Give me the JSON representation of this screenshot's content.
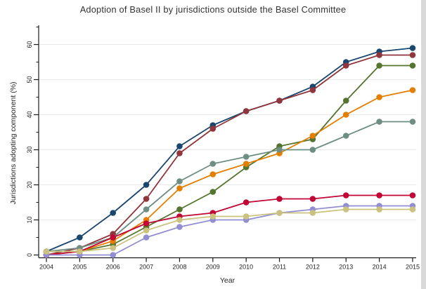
{
  "chart_data": {
    "type": "line",
    "title": "Adoption of Basel II by jurisdictions outside the Basel Committee",
    "xlabel": "Year",
    "ylabel": "Jurisdictions adopting component (%)",
    "x": [
      2004,
      2005,
      2006,
      2007,
      2008,
      2009,
      2010,
      2011,
      2012,
      2013,
      2014,
      2015
    ],
    "ylim": [
      0,
      65
    ],
    "y_major_ticks": [
      0,
      10,
      20,
      30,
      40,
      50,
      60
    ],
    "y_minor_ticks": [
      5,
      15,
      25,
      35,
      45,
      55,
      65
    ],
    "grid": "horizontal light gray lines at major y ticks",
    "legend": "none",
    "marker": "filled circle",
    "series": [
      {
        "name": "series-navy",
        "color": "#1a476f",
        "values": [
          1,
          5,
          12,
          20,
          31,
          37,
          41,
          44,
          48,
          55,
          58,
          59
        ]
      },
      {
        "name": "series-maroon",
        "color": "#90353b",
        "values": [
          0,
          2,
          6,
          16,
          29,
          36,
          41,
          44,
          47,
          54,
          57,
          57
        ]
      },
      {
        "name": "series-forest-green",
        "color": "#55752f",
        "values": [
          1,
          1,
          3,
          8,
          13,
          18,
          25,
          31,
          33,
          44,
          54,
          54
        ]
      },
      {
        "name": "series-orange",
        "color": "#e37e00",
        "values": [
          0,
          1,
          4,
          10,
          19,
          23,
          26,
          29,
          34,
          40,
          45,
          47
        ]
      },
      {
        "name": "series-teal",
        "color": "#6e8e84",
        "values": [
          1,
          2,
          5,
          13,
          21,
          26,
          28,
          30,
          30,
          34,
          38,
          38
        ]
      },
      {
        "name": "series-cranberry",
        "color": "#c10534",
        "values": [
          0,
          1,
          5,
          9,
          11,
          12,
          15,
          16,
          16,
          17,
          17,
          17
        ]
      },
      {
        "name": "series-lavender",
        "color": "#938dd2",
        "values": [
          0,
          0,
          0,
          5,
          8,
          10,
          10,
          12,
          13,
          14,
          14,
          14
        ]
      },
      {
        "name": "series-khaki",
        "color": "#cac27e",
        "values": [
          1,
          1,
          2,
          7,
          10,
          11,
          11,
          12,
          12,
          13,
          13,
          13
        ]
      }
    ]
  },
  "styles": {
    "grid_color": "#e7eaea",
    "axis_color": "#1a1a1a",
    "tick_text_color": "#262626",
    "background": "#ffffff",
    "right_edge_strip": "#d9d9d9"
  }
}
